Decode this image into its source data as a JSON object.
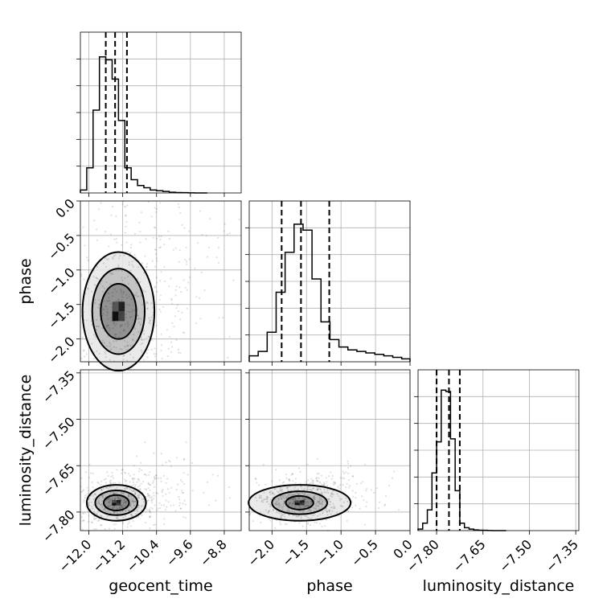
{
  "chart_data": {
    "type": "corner",
    "parameters": [
      "geocent_time",
      "phase",
      "luminosity_distance"
    ],
    "grid": true,
    "ranges": {
      "geocent_time": [
        -12.2,
        -8.4
      ],
      "phase": [
        -2.33,
        0.0
      ],
      "luminosity_distance": [
        -7.86,
        -7.34
      ]
    },
    "ticks": {
      "geocent_time": [
        "−12.0",
        "−11.2",
        "−10.4",
        "−9.6",
        "−8.8"
      ],
      "phase": [
        "−2.0",
        "−1.5",
        "−1.0",
        "−0.5",
        "0.0"
      ],
      "luminosity_distance": [
        "−7.80",
        "−7.65",
        "−7.50",
        "−7.35"
      ]
    },
    "tick_values": {
      "geocent_time": [
        -12.0,
        -11.2,
        -10.4,
        -9.6,
        -8.8
      ],
      "phase": [
        -2.0,
        -1.5,
        -1.0,
        -0.5,
        0.0
      ],
      "luminosity_distance": [
        -7.8,
        -7.65,
        -7.5,
        -7.35
      ]
    },
    "histograms": [
      {
        "parameter": "geocent_time",
        "bin_edges": [
          -12.2,
          -12.05,
          -11.9,
          -11.75,
          -11.6,
          -11.45,
          -11.3,
          -11.15,
          -11.0,
          -10.85,
          -10.7,
          -10.55,
          -10.4,
          -10.25,
          -10.1,
          -9.95,
          -9.8,
          -9.65,
          -9.5,
          -9.35,
          -9.2
        ],
        "counts": [
          0.02,
          0.17,
          0.56,
          0.92,
          0.9,
          0.77,
          0.49,
          0.17,
          0.09,
          0.05,
          0.035,
          0.02,
          0.015,
          0.01,
          0.005,
          0.003,
          0.002,
          0.001,
          0.0,
          0.0
        ],
        "quantiles": [
          -11.6,
          -11.38,
          -11.1
        ]
      },
      {
        "parameter": "phase",
        "bin_edges": [
          -2.33,
          -2.2,
          -2.07,
          -1.94,
          -1.81,
          -1.68,
          -1.55,
          -1.42,
          -1.29,
          -1.16,
          -1.03,
          -0.9,
          -0.77,
          -0.64,
          -0.51,
          -0.38,
          -0.25,
          -0.12,
          0.0
        ],
        "counts": [
          0.04,
          0.07,
          0.2,
          0.47,
          0.74,
          0.93,
          0.89,
          0.56,
          0.27,
          0.15,
          0.1,
          0.08,
          0.07,
          0.06,
          0.05,
          0.04,
          0.03,
          0.02
        ],
        "quantiles": [
          -1.86,
          -1.58,
          -1.17
        ]
      },
      {
        "parameter": "luminosity_distance",
        "bin_edges": [
          -7.86,
          -7.845,
          -7.83,
          -7.815,
          -7.8,
          -7.785,
          -7.77,
          -7.755,
          -7.74,
          -7.725,
          -7.71,
          -7.695,
          -7.68,
          -7.665,
          -7.65,
          -7.635,
          -7.62,
          -7.605,
          -7.59,
          -7.575
        ],
        "counts": [
          0.01,
          0.05,
          0.14,
          0.39,
          0.6,
          0.95,
          0.94,
          0.62,
          0.27,
          0.05,
          0.02,
          0.01,
          0.005,
          0.003,
          0.002,
          0.001,
          0.0,
          0.0,
          0.0
        ],
        "quantiles": [
          -7.8,
          -7.76,
          -7.725
        ]
      }
    ],
    "joint": [
      {
        "x": "geocent_time",
        "y": "phase",
        "center": [
          -11.3,
          -1.6
        ],
        "contour_levels": [
          {
            "rx": 0.42,
            "ry": 0.4
          },
          {
            "rx": 0.62,
            "ry": 0.62
          },
          {
            "rx": 0.85,
            "ry": 0.86
          }
        ]
      },
      {
        "x": "geocent_time",
        "y": "luminosity_distance",
        "center": [
          -11.35,
          -7.77
        ],
        "contour_levels": [
          {
            "rx": 0.3,
            "ry": 0.025
          },
          {
            "rx": 0.5,
            "ry": 0.04
          },
          {
            "rx": 0.7,
            "ry": 0.058
          }
        ]
      },
      {
        "x": "phase",
        "y": "luminosity_distance",
        "center": [
          -1.6,
          -7.77
        ],
        "contour_levels": [
          {
            "rx": 0.2,
            "ry": 0.022
          },
          {
            "rx": 0.4,
            "ry": 0.037
          },
          {
            "rx": 0.74,
            "ry": 0.058
          }
        ]
      }
    ]
  }
}
